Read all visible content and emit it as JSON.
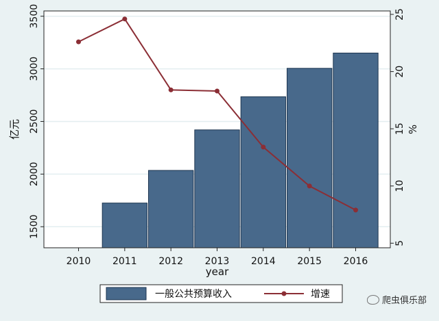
{
  "chart_data": {
    "type": "bar+line",
    "categories": [
      "2010",
      "2011",
      "2012",
      "2013",
      "2014",
      "2015",
      "2016"
    ],
    "xlabel": "year",
    "series": [
      {
        "name": "一般公共预算收入",
        "type": "bar",
        "axis": "left",
        "color": "#48698b",
        "values": [
          null,
          1725,
          2035,
          2420,
          2735,
          3005,
          3150
        ]
      },
      {
        "name": "增速",
        "type": "line",
        "axis": "right",
        "color": "#8b2e35",
        "values": [
          22.6,
          24.6,
          18.4,
          18.3,
          13.4,
          10.0,
          7.9
        ]
      }
    ],
    "y_left": {
      "label": "亿元",
      "ylim": [
        1300,
        3550
      ],
      "ticks": [
        1500,
        2000,
        2500,
        3000,
        3500
      ]
    },
    "y_right": {
      "label": "%",
      "ylim": [
        4.6,
        25.3
      ],
      "ticks": [
        5,
        10,
        15,
        20,
        25
      ]
    },
    "grid": true,
    "legend": "bottom"
  },
  "watermark": {
    "text": "爬虫俱乐部",
    "icon": "wechat-icon"
  }
}
